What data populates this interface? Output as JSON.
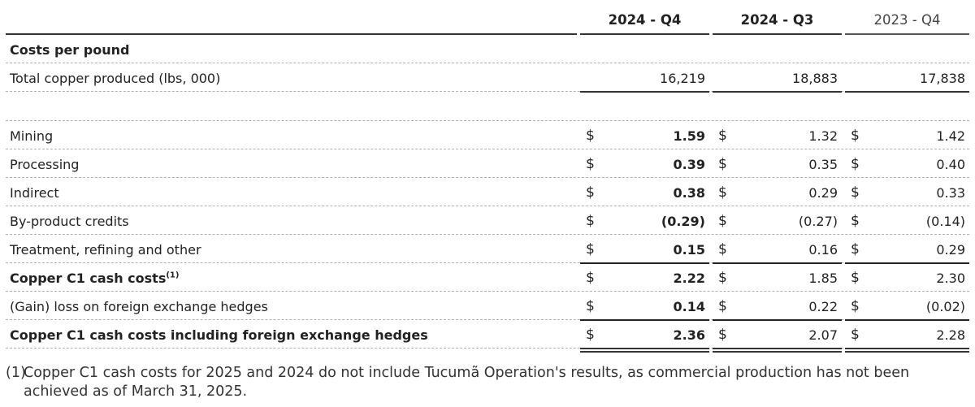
{
  "columns": [
    "2024 - Q4",
    "2024 - Q3",
    "2023 - Q4"
  ],
  "section_title": "Costs per pound",
  "production": {
    "label": "Total copper produced (lbs, 000)",
    "values": [
      "16,219",
      "18,883",
      "17,838"
    ]
  },
  "currency_symbol": "$",
  "rows": [
    {
      "label": "Mining",
      "values": [
        "1.59",
        "1.32",
        "1.42"
      ]
    },
    {
      "label": "Processing",
      "values": [
        "0.39",
        "0.35",
        "0.40"
      ]
    },
    {
      "label": "Indirect",
      "values": [
        "0.38",
        "0.29",
        "0.33"
      ]
    },
    {
      "label": "By-product credits",
      "values": [
        "(0.29)",
        "(0.27)",
        "(0.14)"
      ]
    },
    {
      "label": "Treatment, refining and other",
      "values": [
        "0.15",
        "0.16",
        "0.29"
      ]
    }
  ],
  "c1": {
    "label": "Copper C1 cash costs",
    "footnote_marker": "(1)",
    "values": [
      "2.22",
      "1.85",
      "2.30"
    ]
  },
  "fx": {
    "label": "(Gain) loss on foreign exchange hedges",
    "values": [
      "0.14",
      "0.22",
      "(0.02)"
    ]
  },
  "c1_fx": {
    "label": "Copper C1 cash costs including foreign exchange hedges",
    "values": [
      "2.36",
      "2.07",
      "2.28"
    ]
  },
  "footnote": {
    "marker": "(1)",
    "text": "Copper C1 cash costs for 2025 and 2024 do not include Tucumã Operation's results, as commercial production has not been achieved as of March 31, 2025."
  }
}
